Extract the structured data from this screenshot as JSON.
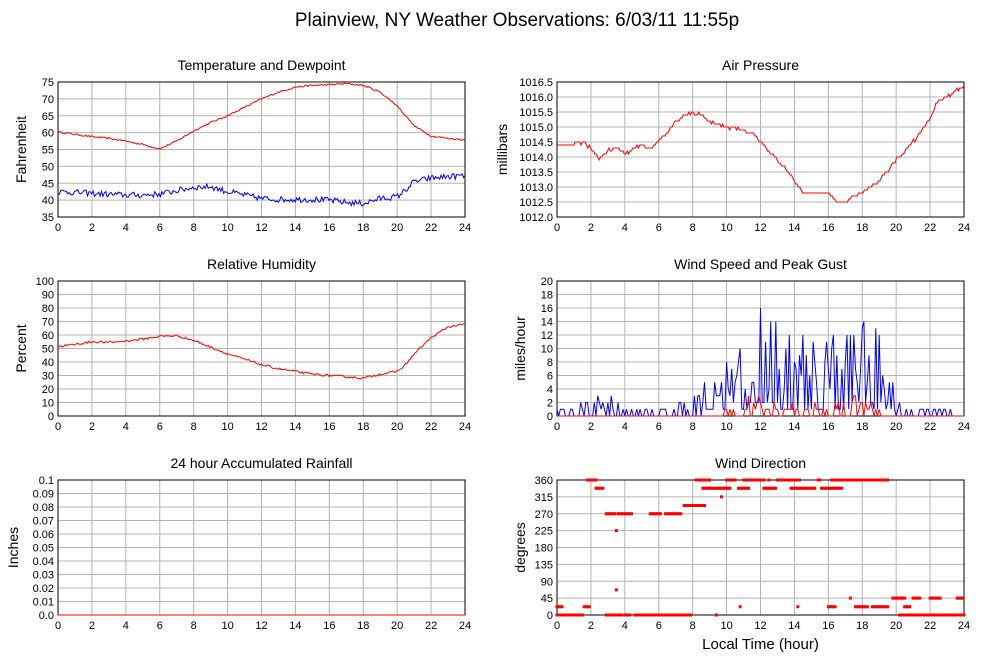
{
  "page": {
    "title": "Plainview, NY Weather Observations: 6/03/11 11:55p"
  },
  "colors": {
    "red": "#ff0000",
    "blue": "#0000ff",
    "grid": "#b4b4b4",
    "frame": "#000000"
  },
  "chart_data": [
    {
      "id": "temp",
      "type": "line",
      "title": "Temperature and Dewpoint",
      "ylabel": "Fahrenheit",
      "xlabel": "",
      "xlim": [
        0,
        24
      ],
      "ylim": [
        35,
        75
      ],
      "xticks": [
        0,
        2,
        4,
        6,
        8,
        10,
        12,
        14,
        16,
        18,
        20,
        22,
        24
      ],
      "yticks": [
        35,
        40,
        45,
        50,
        55,
        60,
        65,
        70,
        75
      ],
      "series": [
        {
          "color": "#ff0000",
          "noise": 0.25,
          "x": [
            0,
            1,
            2,
            3,
            4,
            5,
            6,
            7,
            8,
            9,
            10,
            11,
            12,
            13,
            14,
            15,
            16,
            17,
            18,
            19,
            20,
            21,
            22,
            23,
            24
          ],
          "y": [
            60.2,
            59.5,
            58.8,
            58.3,
            57.5,
            56.5,
            55.2,
            57.5,
            60.5,
            63,
            65,
            67.5,
            70,
            72,
            73.5,
            74,
            74.2,
            74.5,
            74,
            72,
            68,
            62,
            59,
            58.3,
            57.8
          ]
        },
        {
          "color": "#0000ff",
          "noise": 0.9,
          "x": [
            0,
            1,
            2,
            3,
            4,
            5,
            6,
            7,
            8,
            9,
            10,
            11,
            12,
            13,
            14,
            15,
            16,
            17,
            18,
            19,
            20,
            20.5,
            21,
            22,
            23,
            24
          ],
          "y": [
            42.5,
            42.3,
            42,
            41.7,
            41.5,
            41.5,
            41.8,
            42.8,
            43.8,
            44,
            42.5,
            41.5,
            40.5,
            40.2,
            40.2,
            40.2,
            40,
            39.3,
            39,
            40.5,
            41,
            43,
            45.5,
            46.5,
            47,
            47.2
          ]
        }
      ]
    },
    {
      "id": "pressure",
      "type": "line",
      "title": "Air Pressure",
      "ylabel": "millibars",
      "xlabel": "",
      "xlim": [
        0,
        24
      ],
      "ylim": [
        1012.0,
        1016.5
      ],
      "xticks": [
        0,
        2,
        4,
        6,
        8,
        10,
        12,
        14,
        16,
        18,
        20,
        22,
        24
      ],
      "yticks": [
        1012.0,
        1012.5,
        1013.0,
        1013.5,
        1014.0,
        1014.5,
        1015.0,
        1015.5,
        1016.0,
        1016.5
      ],
      "yticklabels": [
        "1012.0",
        "1012.5",
        "1013.0",
        "1013.5",
        "1014.0",
        "1014.5",
        "1015.0",
        "1015.5",
        "1016.0",
        "1016.5"
      ],
      "series": [
        {
          "color": "#ff0000",
          "step": 0.1,
          "noise": 0.05,
          "x": [
            0,
            1,
            1.5,
            2,
            2.5,
            3,
            3.5,
            4,
            5,
            5.5,
            6,
            7,
            7.5,
            8,
            8.5,
            9,
            10,
            11,
            11.5,
            12,
            13,
            14,
            14.5,
            15,
            16,
            16.5,
            17,
            17.5,
            18,
            19,
            20,
            21,
            22,
            22.5,
            23,
            24
          ],
          "y": [
            1014.4,
            1014.4,
            1014.5,
            1014.3,
            1013.9,
            1014.2,
            1014.3,
            1014.1,
            1014.4,
            1014.3,
            1014.5,
            1015.2,
            1015.4,
            1015.5,
            1015.4,
            1015.2,
            1015.0,
            1014.9,
            1014.8,
            1014.5,
            1013.9,
            1013.2,
            1012.8,
            1012.8,
            1012.8,
            1012.5,
            1012.5,
            1012.7,
            1012.8,
            1013.2,
            1013.9,
            1014.5,
            1015.3,
            1015.9,
            1016.0,
            1016.4
          ]
        }
      ]
    },
    {
      "id": "humidity",
      "type": "line",
      "title": "Relative Humidity",
      "ylabel": "Percent",
      "xlabel": "",
      "xlim": [
        0,
        24
      ],
      "ylim": [
        0,
        100
      ],
      "xticks": [
        0,
        2,
        4,
        6,
        8,
        10,
        12,
        14,
        16,
        18,
        20,
        22,
        24
      ],
      "yticks": [
        0,
        10,
        20,
        30,
        40,
        50,
        60,
        70,
        80,
        90,
        100
      ],
      "series": [
        {
          "color": "#ff0000",
          "noise": 0.8,
          "x": [
            0,
            1,
            2,
            3,
            4,
            5,
            6,
            7,
            8,
            9,
            10,
            11,
            12,
            13,
            14,
            15,
            16,
            17,
            18,
            19,
            20,
            20.5,
            21,
            22,
            23,
            24
          ],
          "y": [
            51.5,
            53,
            55,
            54.5,
            55.5,
            57,
            59,
            59.5,
            56,
            51,
            46,
            42,
            38,
            35,
            33,
            31,
            30,
            29,
            28,
            31,
            33,
            38,
            46,
            58,
            66,
            68
          ]
        }
      ]
    },
    {
      "id": "wind",
      "type": "line",
      "title": "Wind Speed and Peak Gust",
      "ylabel": "miles/hour",
      "xlabel": "",
      "xlim": [
        0,
        24
      ],
      "ylim": [
        0,
        20
      ],
      "xticks": [
        0,
        2,
        4,
        6,
        8,
        10,
        12,
        14,
        16,
        18,
        20,
        22,
        24
      ],
      "yticks": [
        0,
        2,
        4,
        6,
        8,
        10,
        12,
        14,
        16,
        18,
        20
      ],
      "series": [
        {
          "color": "#0000ff",
          "kind": "spiky",
          "x": [
            0,
            1,
            2,
            3,
            4,
            5,
            6,
            7,
            8,
            9,
            10,
            11,
            11.5,
            12,
            12.5,
            13,
            14,
            15,
            15.5,
            16,
            17,
            17.5,
            18,
            19,
            19.5,
            20,
            21,
            22,
            23,
            24
          ],
          "y": [
            1,
            0.5,
            2,
            2.5,
            1.5,
            0.5,
            0.5,
            1,
            2.5,
            4,
            6,
            9,
            11,
            14,
            12,
            10,
            9,
            8,
            9,
            10,
            9,
            11,
            12,
            9,
            6,
            2,
            1,
            0.5,
            0.5,
            0.3
          ]
        },
        {
          "color": "#ff0000",
          "kind": "spiky",
          "x": [
            0,
            9,
            9.5,
            10,
            11,
            12,
            13,
            14,
            15,
            16,
            17,
            17.5,
            18,
            19,
            20,
            24
          ],
          "y": [
            0,
            0,
            0.8,
            1.2,
            1.8,
            2.5,
            1.5,
            1.2,
            1.2,
            1.2,
            1.8,
            2.5,
            2.2,
            1,
            0,
            0
          ]
        }
      ]
    },
    {
      "id": "rain",
      "type": "line",
      "title": "24 hour Accumulated Rainfall",
      "ylabel": "Inches",
      "xlabel": "",
      "xlim": [
        0,
        24
      ],
      "ylim": [
        0,
        0.1
      ],
      "xticks": [
        0,
        2,
        4,
        6,
        8,
        10,
        12,
        14,
        16,
        18,
        20,
        22,
        24
      ],
      "yticks": [
        0,
        0.01,
        0.02,
        0.03,
        0.04,
        0.05,
        0.06,
        0.07,
        0.08,
        0.09,
        0.1
      ],
      "yticklabels": [
        "0.0",
        "0.01",
        "0.02",
        "0.03",
        "0.04",
        "0.05",
        "0.06",
        "0.07",
        "0.08",
        "0.09",
        "0.1"
      ],
      "series": [
        {
          "color": "#ff0000",
          "x": [
            0,
            24
          ],
          "y": [
            0,
            0
          ]
        }
      ]
    },
    {
      "id": "direction",
      "type": "scatter",
      "title": "Wind Direction",
      "ylabel": "degrees",
      "xlabel": "Local Time (hour)",
      "xlim": [
        0,
        24
      ],
      "ylim": [
        0,
        360
      ],
      "xticks": [
        0,
        2,
        4,
        6,
        8,
        10,
        12,
        14,
        16,
        18,
        20,
        22,
        24
      ],
      "yticks": [
        0,
        45,
        90,
        135,
        180,
        225,
        270,
        315,
        360
      ],
      "series": [
        {
          "color": "#ff0000",
          "segments": [
            [
              0,
              1.5,
              0
            ],
            [
              0,
              0.3,
              22
            ],
            [
              1.6,
              1.9,
              22
            ],
            [
              1.8,
              2.3,
              360
            ],
            [
              2.3,
              2.7,
              338
            ],
            [
              2.9,
              3.4,
              270
            ],
            [
              3.6,
              4.4,
              270
            ],
            [
              3.5,
              3.5,
              225
            ],
            [
              3.5,
              3.5,
              67
            ],
            [
              2.9,
              3.8,
              0
            ],
            [
              4,
              4.3,
              0
            ],
            [
              4.6,
              4.7,
              0
            ],
            [
              4.8,
              5.2,
              0
            ],
            [
              5.5,
              6.1,
              270
            ],
            [
              6.4,
              7.3,
              270
            ],
            [
              5.2,
              7.9,
              0
            ],
            [
              7.5,
              8.7,
              292
            ],
            [
              8.2,
              9,
              360
            ],
            [
              8.6,
              10.2,
              338
            ],
            [
              9.7,
              9.7,
              315
            ],
            [
              9.4,
              9.4,
              0
            ],
            [
              10,
              10.5,
              360
            ],
            [
              11,
              12.2,
              360
            ],
            [
              10.7,
              11.3,
              338
            ],
            [
              12.2,
              12.9,
              338
            ],
            [
              13,
              14.3,
              360
            ],
            [
              13.8,
              15.2,
              338
            ],
            [
              15.4,
              15.5,
              360
            ],
            [
              15.6,
              16.8,
              338
            ],
            [
              16.2,
              18.4,
              360
            ],
            [
              18.5,
              19.5,
              360
            ],
            [
              16,
              16.4,
              22
            ],
            [
              17.3,
              17.3,
              45
            ],
            [
              17.6,
              18.3,
              22
            ],
            [
              18.6,
              19.5,
              22
            ],
            [
              19.8,
              20.5,
              45
            ],
            [
              20.5,
              20.8,
              22
            ],
            [
              21,
              21.4,
              45
            ],
            [
              22,
              22.6,
              45
            ],
            [
              20.2,
              24,
              0
            ],
            [
              23.6,
              23.9,
              45
            ],
            [
              7.4,
              7.4,
              0
            ],
            [
              10.8,
              10.8,
              22
            ],
            [
              12.5,
              12.5,
              360
            ],
            [
              14.2,
              14.2,
              22
            ]
          ]
        }
      ]
    }
  ]
}
